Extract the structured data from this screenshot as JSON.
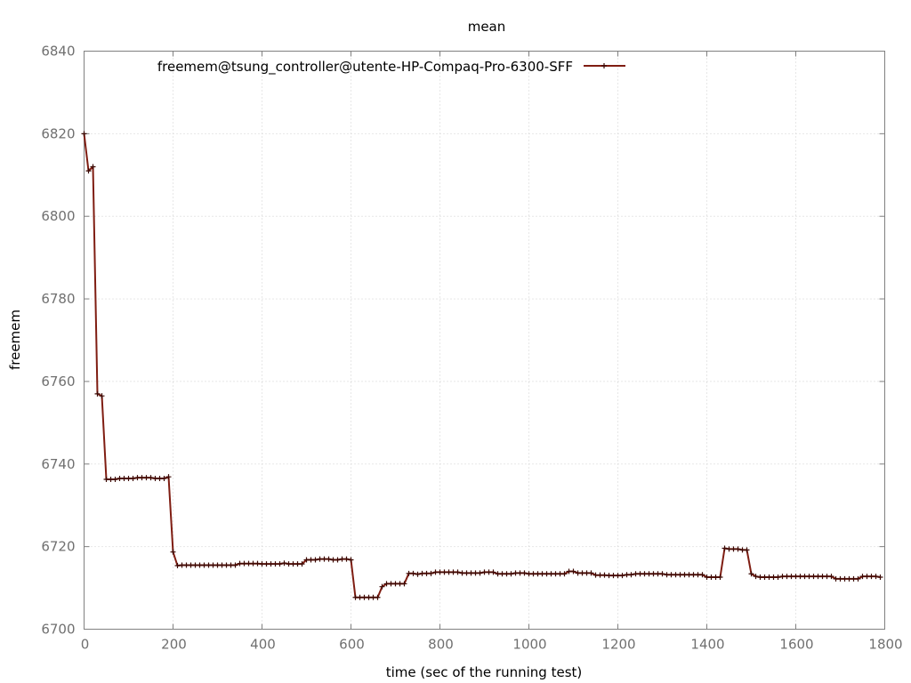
{
  "chart_data": {
    "type": "line",
    "title": "mean",
    "xlabel": "time (sec of the running test)",
    "ylabel": "freemem",
    "xlim": [
      0,
      1800
    ],
    "ylim": [
      6700,
      6840
    ],
    "xticks": [
      "0",
      "200",
      "400",
      "600",
      "800",
      "1000",
      "1200",
      "1400",
      "1600",
      "1800"
    ],
    "yticks": [
      "6700",
      "6720",
      "6740",
      "6760",
      "6780",
      "6800",
      "6820",
      "6840"
    ],
    "grid": true,
    "legend_position": "top",
    "colors": {
      "series": "#7f1d12",
      "grid": "#cfcfcf",
      "axis": "#808080"
    },
    "series": [
      {
        "name": "freemem@tsung_controller@utente-HP-Compaq-Pro-6300-SFF",
        "x": [
          0,
          10,
          20,
          30,
          40,
          50,
          60,
          70,
          80,
          90,
          100,
          110,
          120,
          130,
          140,
          150,
          160,
          170,
          180,
          190,
          200,
          210,
          220,
          230,
          240,
          250,
          260,
          270,
          280,
          290,
          300,
          310,
          320,
          330,
          340,
          350,
          360,
          370,
          380,
          390,
          400,
          410,
          420,
          430,
          440,
          450,
          460,
          470,
          480,
          490,
          500,
          510,
          520,
          530,
          540,
          550,
          560,
          570,
          580,
          590,
          600,
          610,
          620,
          630,
          640,
          650,
          660,
          670,
          680,
          690,
          700,
          710,
          720,
          730,
          740,
          750,
          760,
          770,
          780,
          790,
          800,
          810,
          820,
          830,
          840,
          850,
          860,
          870,
          880,
          890,
          900,
          910,
          920,
          930,
          940,
          950,
          960,
          970,
          980,
          990,
          1000,
          1010,
          1020,
          1030,
          1040,
          1050,
          1060,
          1070,
          1080,
          1090,
          1100,
          1110,
          1120,
          1130,
          1140,
          1150,
          1160,
          1170,
          1180,
          1190,
          1200,
          1210,
          1220,
          1230,
          1240,
          1250,
          1260,
          1270,
          1280,
          1290,
          1300,
          1310,
          1320,
          1330,
          1340,
          1350,
          1360,
          1370,
          1380,
          1390,
          1400,
          1410,
          1420,
          1430,
          1440,
          1450,
          1460,
          1470,
          1480,
          1490,
          1500,
          1510,
          1520,
          1530,
          1540,
          1550,
          1560,
          1570,
          1580,
          1590,
          1600,
          1610,
          1620,
          1630,
          1640,
          1650,
          1660,
          1670,
          1680,
          1690,
          1700,
          1710,
          1720,
          1730,
          1740,
          1750,
          1760,
          1770,
          1780,
          1790
        ],
        "values": [
          6820,
          6811,
          6812,
          6757,
          6756.5,
          6736.3,
          6736.3,
          6736.3,
          6736.5,
          6736.5,
          6736.5,
          6736.5,
          6736.7,
          6736.7,
          6736.7,
          6736.7,
          6736.5,
          6736.5,
          6736.5,
          6736.9,
          6718.7,
          6715.4,
          6715.5,
          6715.5,
          6715.5,
          6715.5,
          6715.5,
          6715.5,
          6715.5,
          6715.5,
          6715.5,
          6715.5,
          6715.5,
          6715.5,
          6715.5,
          6715.9,
          6715.9,
          6715.9,
          6715.9,
          6715.9,
          6715.8,
          6715.8,
          6715.8,
          6715.8,
          6715.8,
          6716,
          6715.8,
          6715.8,
          6715.8,
          6715.8,
          6716.8,
          6716.8,
          6716.8,
          6717,
          6717,
          6717,
          6716.8,
          6716.8,
          6717,
          6717,
          6716.8,
          6707.7,
          6707.7,
          6707.7,
          6707.7,
          6707.7,
          6707.7,
          6710.3,
          6711,
          6711,
          6711,
          6711,
          6711,
          6713.5,
          6713.5,
          6713.3,
          6713.5,
          6713.5,
          6713.5,
          6713.8,
          6713.8,
          6713.8,
          6713.8,
          6713.8,
          6713.8,
          6713.6,
          6713.6,
          6713.6,
          6713.6,
          6713.6,
          6713.8,
          6713.8,
          6713.8,
          6713.4,
          6713.4,
          6713.4,
          6713.4,
          6713.6,
          6713.6,
          6713.6,
          6713.4,
          6713.4,
          6713.4,
          6713.4,
          6713.4,
          6713.4,
          6713.4,
          6713.4,
          6713.4,
          6714,
          6714,
          6713.6,
          6713.6,
          6713.6,
          6713.6,
          6713.1,
          6713.1,
          6713.1,
          6713,
          6713,
          6713,
          6713,
          6713.2,
          6713.2,
          6713.4,
          6713.4,
          6713.4,
          6713.4,
          6713.4,
          6713.4,
          6713.4,
          6713.2,
          6713.2,
          6713.2,
          6713.2,
          6713.2,
          6713.2,
          6713.2,
          6713.2,
          6713.2,
          6712.6,
          6712.6,
          6712.6,
          6712.6,
          6719.6,
          6719.4,
          6719.4,
          6719.4,
          6719.2,
          6719.2,
          6713.4,
          6712.8,
          6712.6,
          6712.6,
          6712.6,
          6712.6,
          6712.6,
          6712.8,
          6712.8,
          6712.8,
          6712.8,
          6712.8,
          6712.8,
          6712.8,
          6712.8,
          6712.8,
          6712.8,
          6712.8,
          6712.8,
          6712.2,
          6712.2,
          6712.2,
          6712.2,
          6712.2,
          6712.2,
          6712.8,
          6712.8,
          6712.8,
          6712.8,
          6712.6
        ]
      }
    ]
  }
}
